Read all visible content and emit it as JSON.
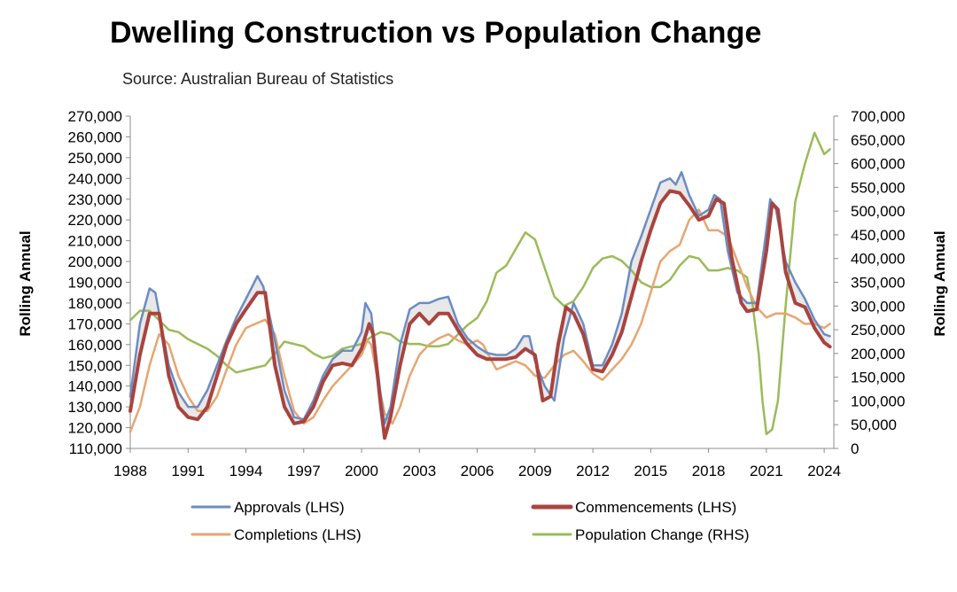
{
  "chart_data": {
    "type": "line",
    "title": "Dwelling Construction vs Population Change",
    "subtitle": "Source: Australian Bureau of Statistics",
    "ylabel_left": "Rolling Annual",
    "ylabel_right": "Rolling Annual",
    "xlim": [
      1988,
      2024.5
    ],
    "ylim_left": [
      110000,
      270000
    ],
    "ylim_right": [
      0,
      700000
    ],
    "x_ticks": [
      "1988",
      "1991",
      "1994",
      "1997",
      "2000",
      "2003",
      "2006",
      "2009",
      "2012",
      "2015",
      "2018",
      "2021",
      "2024"
    ],
    "y_ticks_left": [
      "270,000",
      "260,000",
      "250,000",
      "240,000",
      "230,000",
      "220,000",
      "210,000",
      "200,000",
      "190,000",
      "180,000",
      "170,000",
      "160,000",
      "150,000",
      "140,000",
      "130,000",
      "120,000",
      "110,000"
    ],
    "y_ticks_right": [
      "700,000",
      "650,000",
      "600,000",
      "550,000",
      "500,000",
      "450,000",
      "400,000",
      "350,000",
      "300,000",
      "250,000",
      "200,000",
      "150,000",
      "100,000",
      "50,000",
      "0"
    ],
    "grid": false,
    "legend_position": "bottom",
    "series": [
      {
        "name": "Approvals (LHS)",
        "axis": "left",
        "color": "#6b8cc4",
        "x": [
          1988,
          1988.5,
          1989,
          1989.3,
          1990,
          1990.5,
          1991,
          1991.5,
          1992,
          1992.5,
          1993,
          1993.5,
          1994,
          1994.6,
          1994.9,
          1995.5,
          1996,
          1996.5,
          1997,
          1997.5,
          1998,
          1998.5,
          1999,
          1999.5,
          2000,
          2000.2,
          2000.5,
          2001,
          2001.2,
          2001.5,
          2002,
          2002.5,
          2003,
          2003.5,
          2004,
          2004.5,
          2005,
          2005.5,
          2006,
          2006.5,
          2007,
          2007.5,
          2008,
          2008.4,
          2008.7,
          2009,
          2009.5,
          2010,
          2010.5,
          2011,
          2011.5,
          2012,
          2012.5,
          2013,
          2013.5,
          2014,
          2014.5,
          2015,
          2015.5,
          2016,
          2016.3,
          2016.6,
          2017,
          2017.5,
          2018,
          2018.3,
          2018.6,
          2019,
          2019.5,
          2020,
          2020.5,
          2021,
          2021.2,
          2021.5,
          2022,
          2022.5,
          2023,
          2023.5,
          2024,
          2024.3
        ],
        "values": [
          135000,
          170000,
          187000,
          185000,
          150000,
          137000,
          130000,
          130000,
          138000,
          150000,
          162000,
          173000,
          182000,
          193000,
          188000,
          162000,
          138000,
          125000,
          124000,
          133000,
          145000,
          153000,
          157000,
          157000,
          166000,
          180000,
          175000,
          135000,
          122000,
          130000,
          160000,
          177000,
          180000,
          180000,
          182000,
          183000,
          170000,
          163000,
          159000,
          156000,
          155000,
          155000,
          158000,
          164000,
          164000,
          152000,
          140000,
          133000,
          163000,
          180000,
          170000,
          150000,
          150000,
          160000,
          175000,
          200000,
          212000,
          225000,
          238000,
          240000,
          237000,
          243000,
          232000,
          222000,
          225000,
          232000,
          230000,
          205000,
          185000,
          180000,
          180000,
          215000,
          230000,
          225000,
          200000,
          190000,
          182000,
          172000,
          165000,
          164000
        ]
      },
      {
        "name": "Commencements (LHS)",
        "axis": "left",
        "color": "#a8443f",
        "x": [
          1988,
          1988.5,
          1989,
          1989.5,
          1990,
          1990.5,
          1991,
          1991.5,
          1992,
          1992.5,
          1993,
          1993.5,
          1994,
          1994.6,
          1995,
          1995.5,
          1996,
          1996.5,
          1997,
          1997.5,
          1998,
          1998.5,
          1999,
          1999.5,
          2000,
          2000.4,
          2000.6,
          2001,
          2001.2,
          2001.5,
          2002,
          2002.5,
          2003,
          2003.5,
          2004,
          2004.5,
          2005,
          2005.5,
          2006,
          2006.5,
          2007,
          2007.5,
          2008,
          2008.5,
          2009,
          2009.4,
          2009.8,
          2010.2,
          2010.6,
          2011,
          2011.5,
          2012,
          2012.5,
          2013,
          2013.5,
          2014,
          2014.5,
          2015,
          2015.5,
          2016,
          2016.5,
          2017,
          2017.5,
          2018,
          2018.4,
          2018.8,
          2019.2,
          2019.7,
          2020,
          2020.5,
          2021,
          2021.3,
          2021.6,
          2022,
          2022.5,
          2023,
          2023.5,
          2024,
          2024.3
        ],
        "values": [
          128000,
          155000,
          175000,
          175000,
          145000,
          130000,
          125000,
          124000,
          130000,
          145000,
          160000,
          170000,
          177000,
          185000,
          185000,
          150000,
          130000,
          122000,
          123000,
          130000,
          142000,
          150000,
          151000,
          150000,
          158000,
          170000,
          165000,
          130000,
          115000,
          125000,
          150000,
          170000,
          175000,
          170000,
          175000,
          175000,
          167000,
          160000,
          155000,
          153000,
          153000,
          153000,
          154000,
          158000,
          155000,
          133000,
          135000,
          160000,
          178000,
          175000,
          165000,
          148000,
          147000,
          155000,
          166000,
          183000,
          200000,
          215000,
          228000,
          234000,
          233000,
          227000,
          220000,
          222000,
          230000,
          228000,
          202000,
          180000,
          176000,
          177000,
          205000,
          228000,
          225000,
          195000,
          180000,
          178000,
          168000,
          161000,
          159000
        ]
      },
      {
        "name": "Completions (LHS)",
        "axis": "left",
        "color": "#e8a571",
        "x": [
          1988,
          1988.5,
          1989,
          1989.5,
          1990,
          1990.5,
          1991,
          1991.5,
          1992,
          1992.5,
          1993,
          1993.5,
          1994,
          1994.5,
          1995,
          1995.5,
          1996,
          1996.5,
          1997,
          1997.5,
          1998,
          1998.5,
          1999,
          1999.5,
          2000,
          2000.3,
          2000.5,
          2000.8,
          2001.2,
          2001.6,
          2002,
          2002.5,
          2003,
          2003.5,
          2004,
          2004.5,
          2005,
          2005.5,
          2006,
          2006.3,
          2006.7,
          2007,
          2007.5,
          2008,
          2008.5,
          2009,
          2009.5,
          2010,
          2010.5,
          2011,
          2011.5,
          2012,
          2012.5,
          2013,
          2013.5,
          2014,
          2014.5,
          2015,
          2015.5,
          2016,
          2016.5,
          2017,
          2017.5,
          2018,
          2018.5,
          2019,
          2019.5,
          2020,
          2020.5,
          2021,
          2021.5,
          2022,
          2022.5,
          2023,
          2023.5,
          2024,
          2024.3
        ],
        "values": [
          118000,
          130000,
          150000,
          165000,
          160000,
          145000,
          135000,
          128000,
          128000,
          135000,
          148000,
          160000,
          168000,
          170000,
          172000,
          165000,
          145000,
          128000,
          122000,
          125000,
          133000,
          140000,
          145000,
          150000,
          155000,
          162000,
          160000,
          145000,
          127000,
          122000,
          130000,
          145000,
          155000,
          160000,
          163000,
          165000,
          162000,
          160000,
          162000,
          160000,
          153000,
          148000,
          150000,
          152000,
          150000,
          145000,
          144000,
          150000,
          155000,
          157000,
          152000,
          146000,
          143000,
          148000,
          153000,
          160000,
          170000,
          185000,
          200000,
          205000,
          208000,
          220000,
          225000,
          215000,
          215000,
          212000,
          200000,
          188000,
          178000,
          173000,
          175000,
          175000,
          173000,
          170000,
          170000,
          168000,
          170000
        ]
      },
      {
        "name": "Population Change (RHS)",
        "axis": "right",
        "color": "#9bbb59",
        "x": [
          1988,
          1988.5,
          1989,
          1989.5,
          1990,
          1990.5,
          1991,
          1991.5,
          1992,
          1992.5,
          1993,
          1993.5,
          1994,
          1994.5,
          1995,
          1995.5,
          1996,
          1996.5,
          1997,
          1997.5,
          1998,
          1998.5,
          1999,
          1999.5,
          2000,
          2000.5,
          2001,
          2001.5,
          2002,
          2002.5,
          2003,
          2003.5,
          2004,
          2004.5,
          2005,
          2005.5,
          2006,
          2006.5,
          2007,
          2007.5,
          2008,
          2008.5,
          2009,
          2009.5,
          2010,
          2010.5,
          2011,
          2011.5,
          2012,
          2012.5,
          2013,
          2013.5,
          2014,
          2014.5,
          2015,
          2015.5,
          2016,
          2016.5,
          2017,
          2017.5,
          2018,
          2018.5,
          2019,
          2019.5,
          2020,
          2020.3,
          2020.6,
          2020.8,
          2021,
          2021.3,
          2021.6,
          2022,
          2022.5,
          2023,
          2023.5,
          2024,
          2024.3
        ],
        "values": [
          270000,
          290000,
          290000,
          270000,
          250000,
          245000,
          230000,
          220000,
          210000,
          195000,
          175000,
          160000,
          165000,
          170000,
          175000,
          200000,
          225000,
          220000,
          215000,
          200000,
          190000,
          195000,
          210000,
          215000,
          220000,
          235000,
          245000,
          240000,
          225000,
          220000,
          220000,
          215000,
          215000,
          220000,
          240000,
          260000,
          275000,
          310000,
          370000,
          385000,
          420000,
          455000,
          440000,
          380000,
          320000,
          300000,
          310000,
          340000,
          380000,
          400000,
          405000,
          395000,
          375000,
          350000,
          340000,
          340000,
          355000,
          385000,
          405000,
          400000,
          375000,
          375000,
          380000,
          375000,
          360000,
          300000,
          200000,
          100000,
          30000,
          40000,
          100000,
          300000,
          520000,
          600000,
          665000,
          620000,
          630000
        ]
      }
    ]
  }
}
